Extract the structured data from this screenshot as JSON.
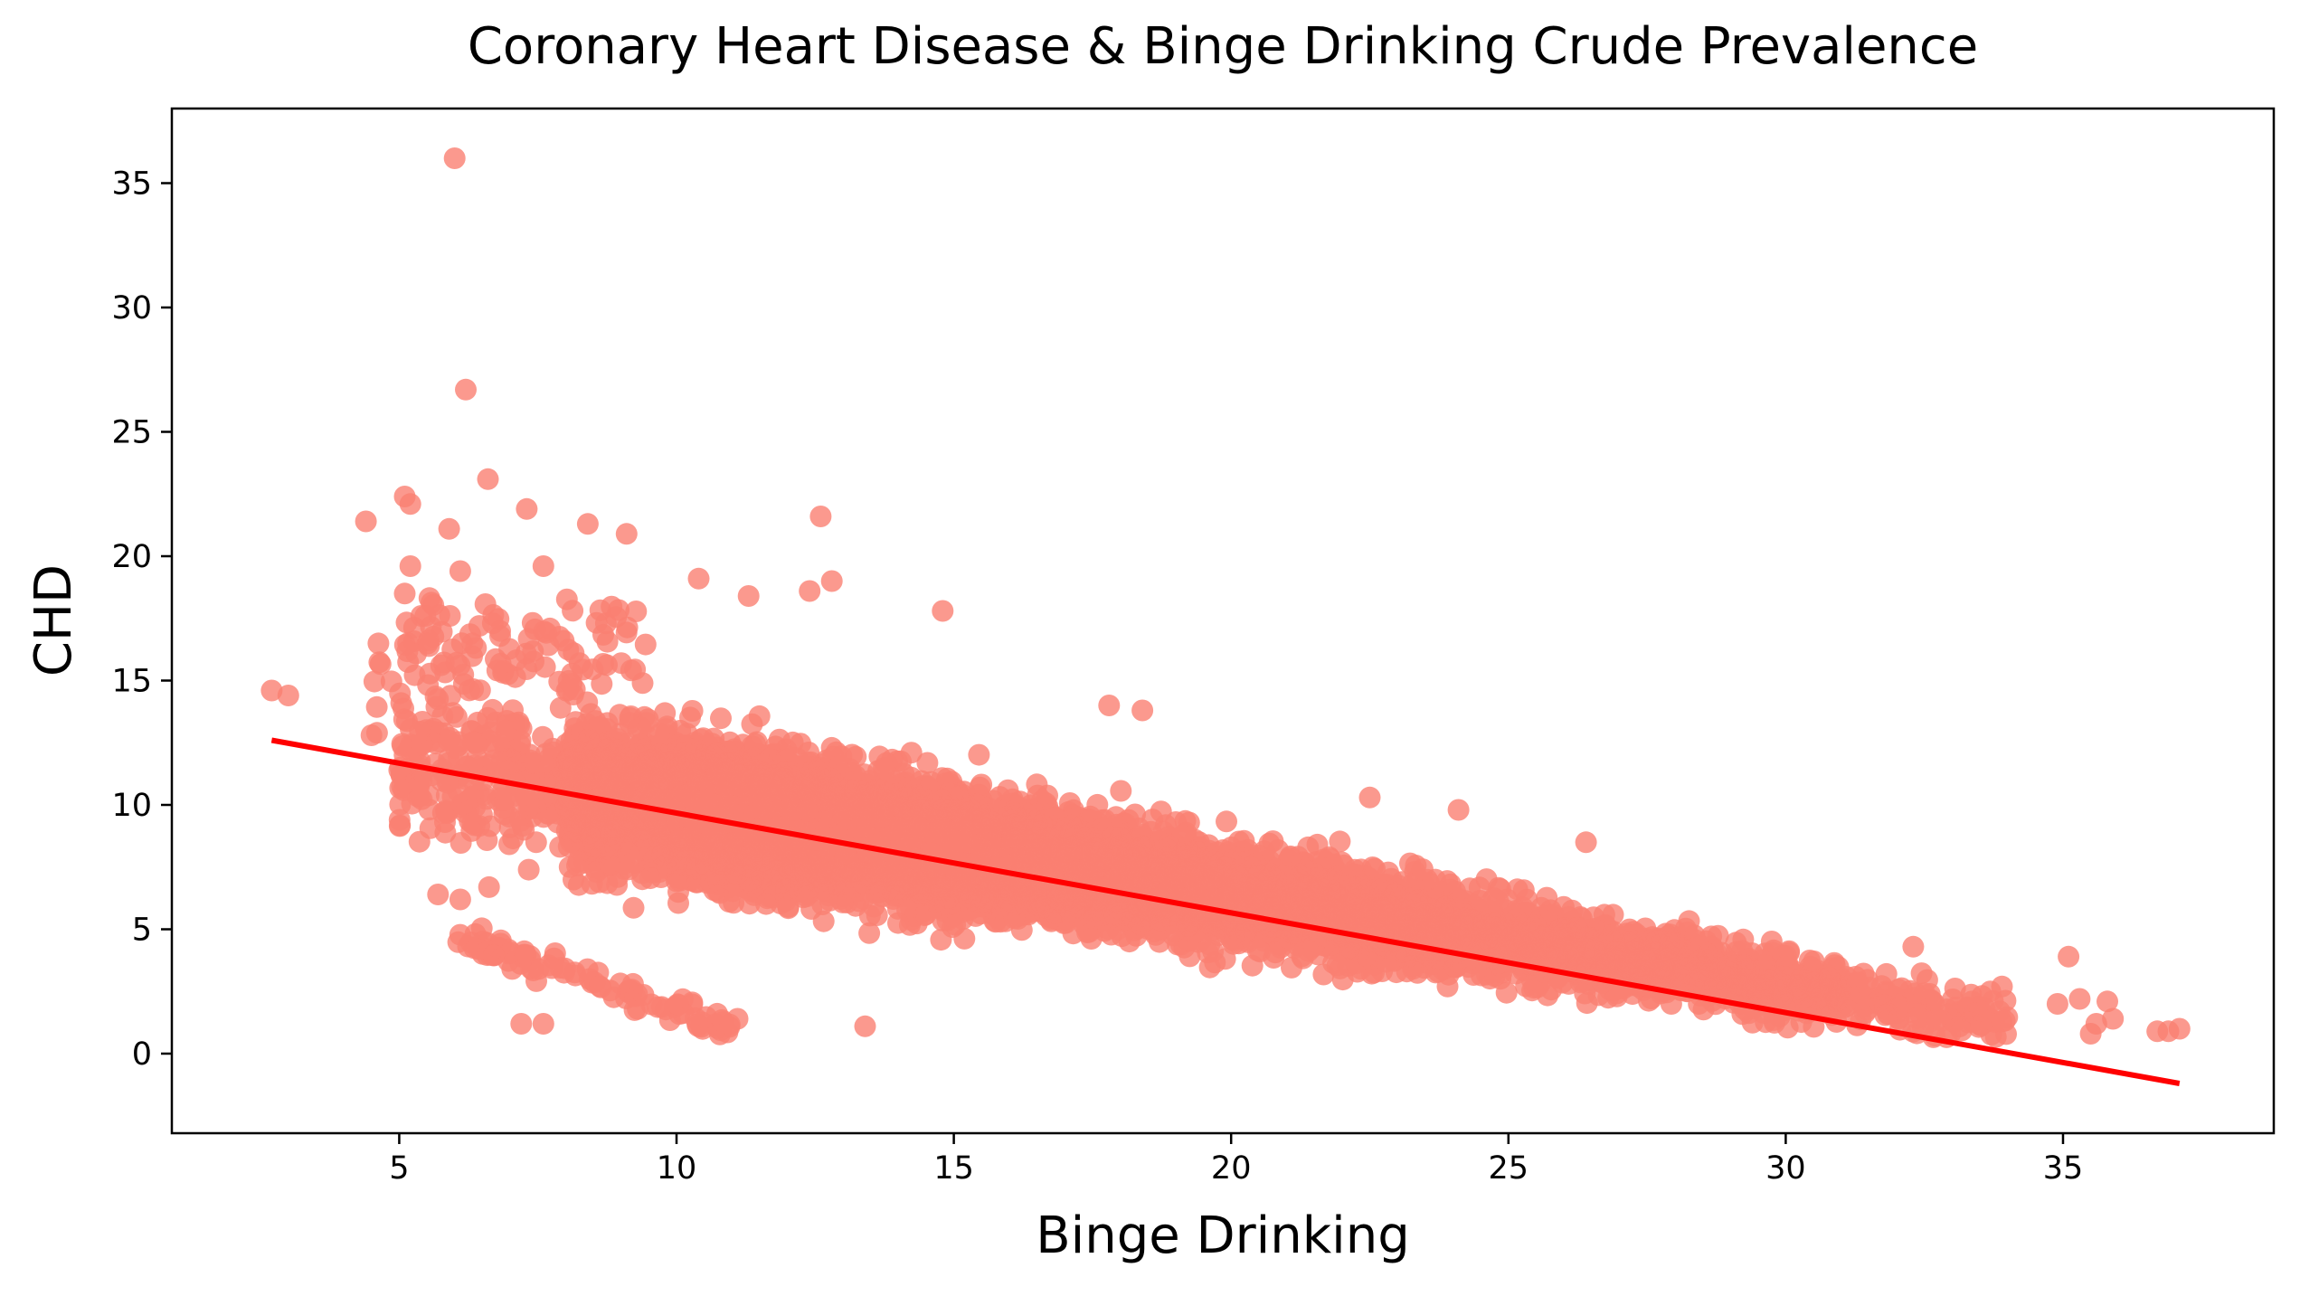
{
  "chart_data": {
    "type": "scatter",
    "title": "Coronary Heart Disease & Binge Drinking Crude Prevalence",
    "xlabel": "Binge Drinking",
    "ylabel": "CHD",
    "xlim": [
      0.9,
      38.8
    ],
    "ylim": [
      -3.2,
      38.0
    ],
    "xticks": [
      5,
      10,
      15,
      20,
      25,
      30,
      35
    ],
    "yticks": [
      0,
      5,
      10,
      15,
      20,
      25,
      30,
      35
    ],
    "grid": false,
    "legend": "none",
    "colors": {
      "points": "#fa8072",
      "regression_line": "#ff0000"
    },
    "point_opacity": 0.8,
    "regression_line": {
      "x": [
        2.7,
        37.1
      ],
      "y": [
        12.6,
        -1.2
      ]
    },
    "outliers": [
      {
        "x": 6.0,
        "y": 36.0
      },
      {
        "x": 6.2,
        "y": 26.7
      },
      {
        "x": 6.6,
        "y": 23.1
      },
      {
        "x": 5.1,
        "y": 22.4
      },
      {
        "x": 5.2,
        "y": 22.1
      },
      {
        "x": 7.3,
        "y": 21.9
      },
      {
        "x": 4.4,
        "y": 21.4
      },
      {
        "x": 12.6,
        "y": 21.6
      },
      {
        "x": 8.4,
        "y": 21.3
      },
      {
        "x": 5.9,
        "y": 21.1
      },
      {
        "x": 9.1,
        "y": 20.9
      },
      {
        "x": 5.2,
        "y": 19.6
      },
      {
        "x": 6.1,
        "y": 19.4
      },
      {
        "x": 7.6,
        "y": 19.6
      },
      {
        "x": 12.8,
        "y": 19.0
      },
      {
        "x": 10.4,
        "y": 19.1
      },
      {
        "x": 12.4,
        "y": 18.6
      },
      {
        "x": 11.3,
        "y": 18.4
      },
      {
        "x": 5.1,
        "y": 18.5
      },
      {
        "x": 14.8,
        "y": 17.8
      },
      {
        "x": 2.7,
        "y": 14.6
      },
      {
        "x": 3.0,
        "y": 14.4
      },
      {
        "x": 4.5,
        "y": 12.8
      },
      {
        "x": 4.6,
        "y": 12.9
      },
      {
        "x": 5.0,
        "y": 11.4
      },
      {
        "x": 6.3,
        "y": 10.3
      },
      {
        "x": 7.2,
        "y": 9.6
      },
      {
        "x": 5.7,
        "y": 6.4
      },
      {
        "x": 6.1,
        "y": 6.2
      },
      {
        "x": 7.2,
        "y": 1.2
      },
      {
        "x": 7.6,
        "y": 1.2
      },
      {
        "x": 9.3,
        "y": 1.8
      },
      {
        "x": 13.4,
        "y": 1.1
      },
      {
        "x": 11.1,
        "y": 1.4
      },
      {
        "x": 17.8,
        "y": 14.0
      },
      {
        "x": 18.4,
        "y": 13.8
      },
      {
        "x": 22.5,
        "y": 10.3
      },
      {
        "x": 24.1,
        "y": 9.8
      },
      {
        "x": 26.4,
        "y": 8.5
      },
      {
        "x": 32.3,
        "y": 4.3
      },
      {
        "x": 33.9,
        "y": 2.7
      },
      {
        "x": 35.1,
        "y": 3.9
      },
      {
        "x": 34.9,
        "y": 2.0
      },
      {
        "x": 35.3,
        "y": 2.2
      },
      {
        "x": 35.8,
        "y": 2.1
      },
      {
        "x": 35.6,
        "y": 1.2
      },
      {
        "x": 35.9,
        "y": 1.4
      },
      {
        "x": 35.5,
        "y": 0.8
      },
      {
        "x": 36.7,
        "y": 0.9
      },
      {
        "x": 36.9,
        "y": 0.9
      },
      {
        "x": 37.1,
        "y": 1.0
      }
    ]
  }
}
